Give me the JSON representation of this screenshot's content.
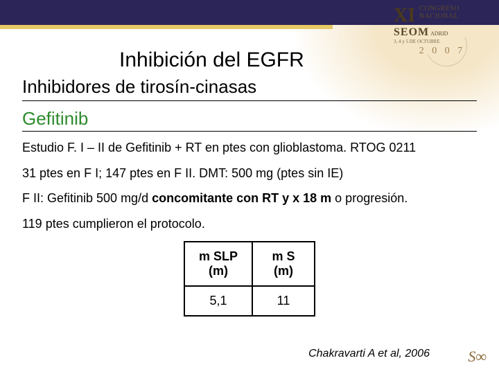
{
  "logo": {
    "roman": "XI",
    "line1": "CONGRESO",
    "line2": "NACIONAL",
    "org": "SEOM",
    "city": "ADRID",
    "dates": "3, 4 y 5 DE OCTUBRE",
    "year": "2 0 0 7"
  },
  "title": "Inhibición del EGFR",
  "subtitle": "Inhibidores de tirosín-cinasas",
  "drug": "Gefitinib",
  "p1": "Estudio F. I – II de Gefitinib + RT en ptes con glioblastoma. RTOG 0211",
  "p2": "31 ptes en F I; 147 ptes en F II.   DMT: 500 mg (ptes sin IE)",
  "p3_a": "F II: Gefitinib 500 mg/d ",
  "p3_b": "concomitante con RT y x 18 m",
  "p3_c": " o progresión.",
  "p4": "119 ptes cumplieron el protocolo.",
  "table": {
    "columns": [
      "m SLP\n(m)",
      "m S\n(m)"
    ],
    "rows": [
      [
        "5,1",
        "11"
      ]
    ],
    "border_color": "#000000",
    "cell_padding": 10,
    "header_fontweight": "bold",
    "fontsize": 18
  },
  "citation": "Chakravarti A et al, 2006",
  "footer_mark": "S∞",
  "colors": {
    "topbar": "#2c2558",
    "accent_yellow": "#e8c968",
    "drug_green": "#2e8b2e",
    "logo_text": "#5a4a2a",
    "bg_glow": "#f5e6c8"
  }
}
